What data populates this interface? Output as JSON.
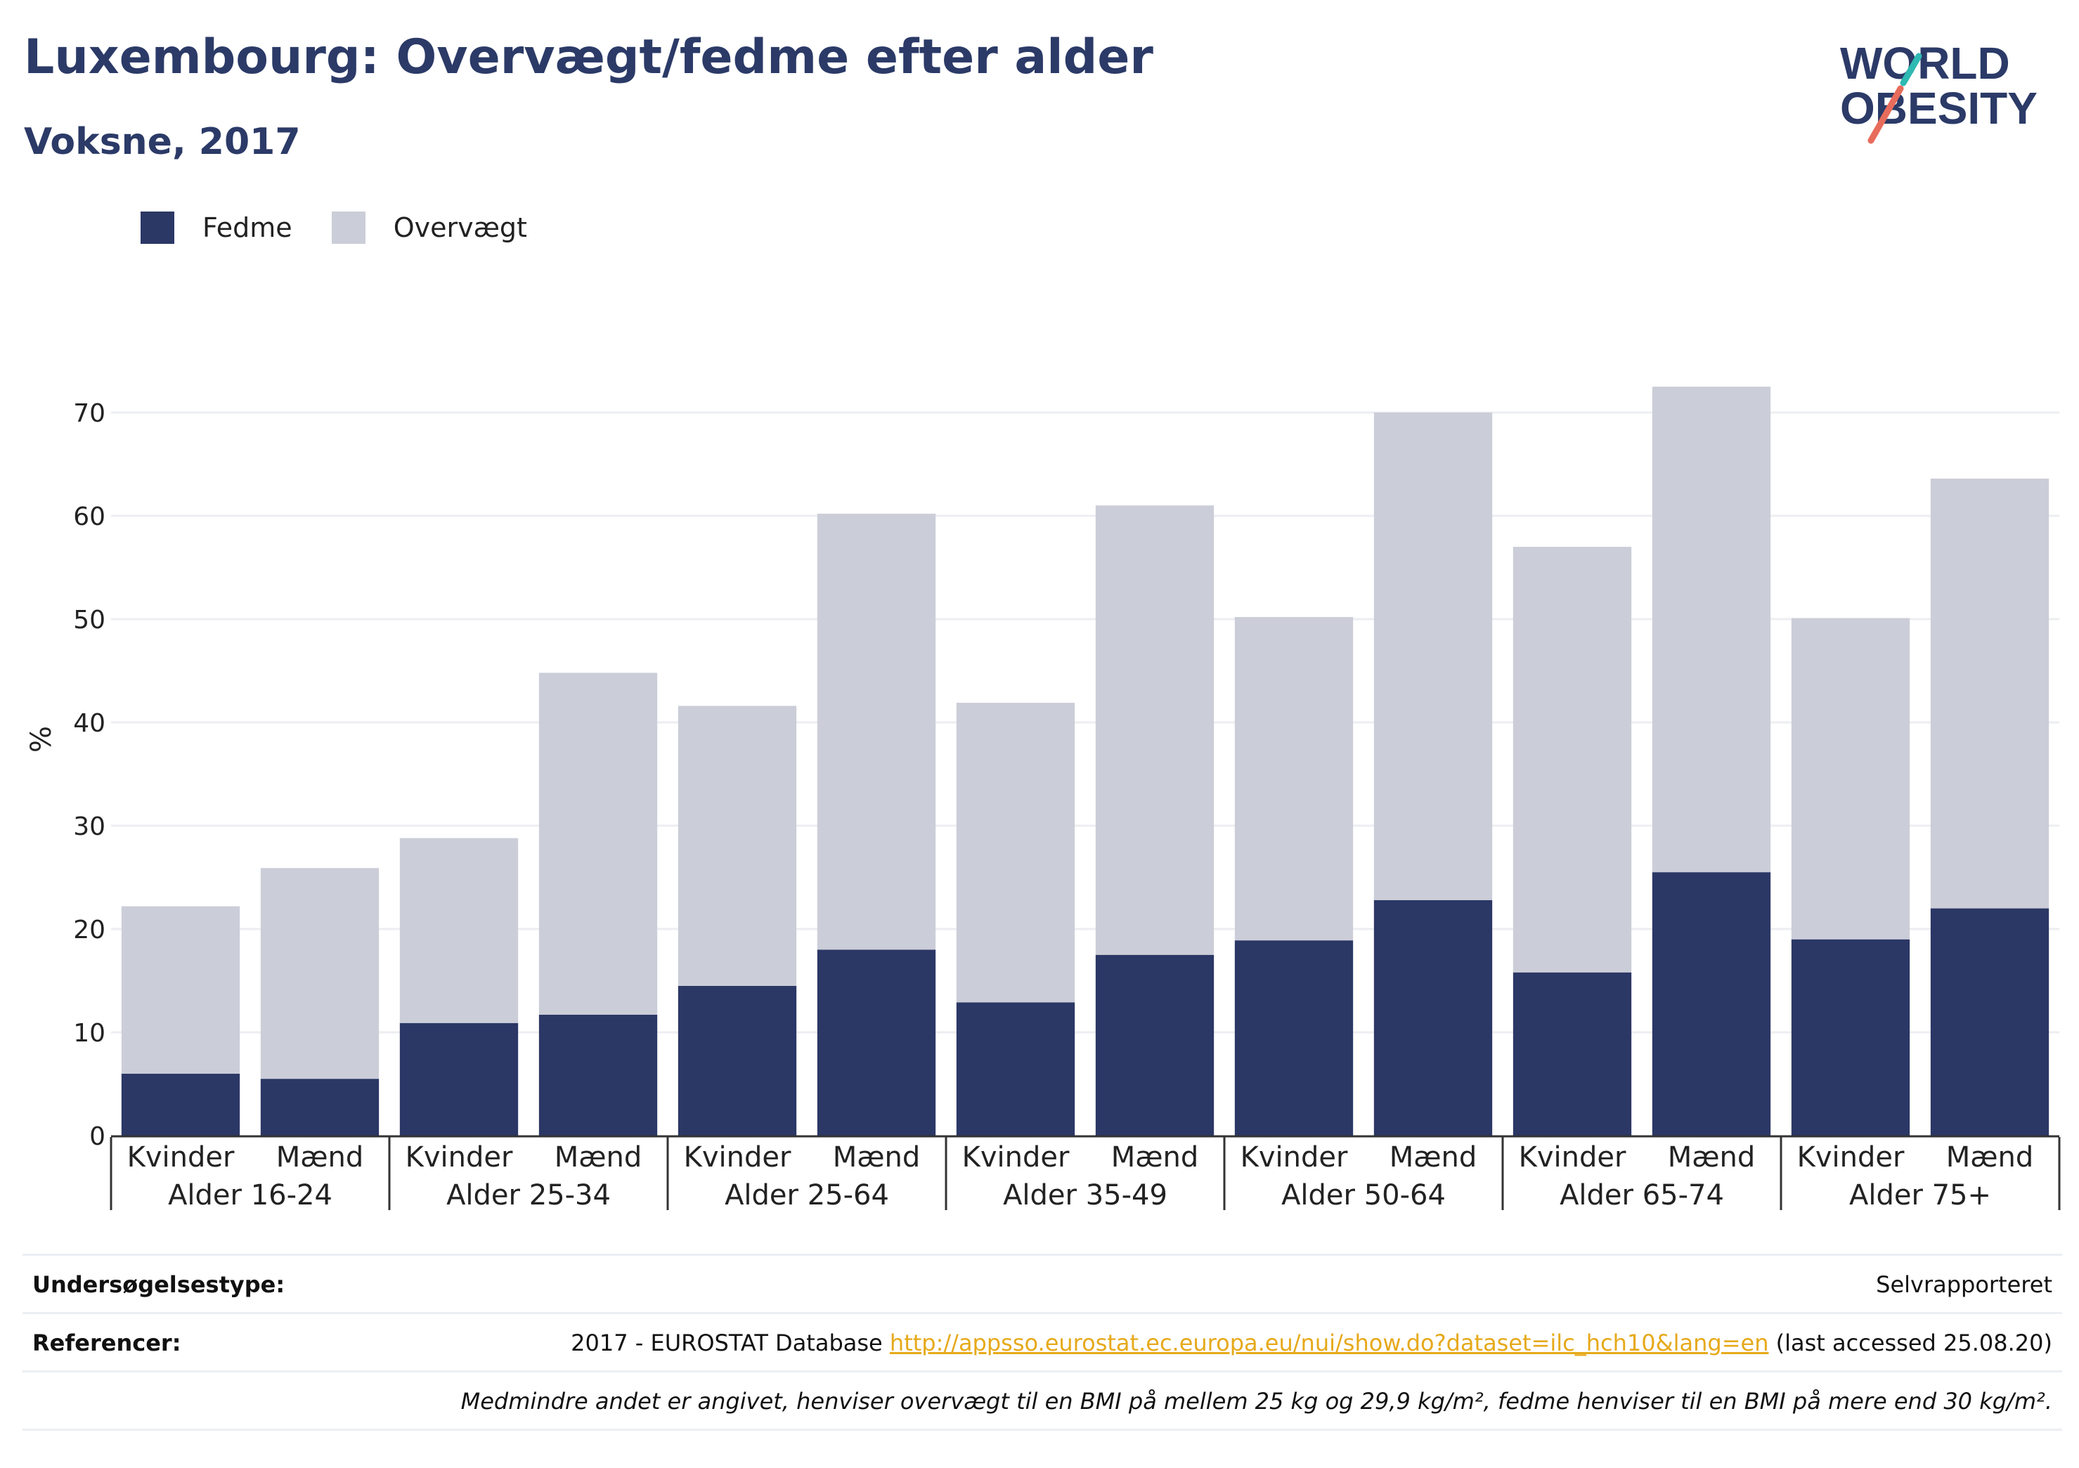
{
  "header": {
    "title": "Luxembourg: Overvægt/fedme efter alder",
    "subtitle": "Voksne, 2017",
    "logo_line1": "WORLD",
    "logo_line2": "OBESITY"
  },
  "legend": {
    "items": [
      {
        "label": "Fedme",
        "color": "#2b3765"
      },
      {
        "label": "Overvægt",
        "color": "#cbcdd8"
      }
    ]
  },
  "chart_data": {
    "type": "bar",
    "stacked": true,
    "ylabel": "%",
    "ylim": [
      0,
      75
    ],
    "yticks": [
      0,
      10,
      20,
      30,
      40,
      50,
      60,
      70
    ],
    "grid": true,
    "legend_position": "top-left",
    "groups": [
      "Alder 16-24",
      "Alder 25-34",
      "Alder 25-64",
      "Alder 35-49",
      "Alder 50-64",
      "Alder 65-74",
      "Alder 75+"
    ],
    "subcategories": [
      "Kvinder",
      "Mænd"
    ],
    "categories": [
      "Kvinder",
      "Mænd",
      "Kvinder",
      "Mænd",
      "Kvinder",
      "Mænd",
      "Kvinder",
      "Mænd",
      "Kvinder",
      "Mænd",
      "Kvinder",
      "Mænd",
      "Kvinder",
      "Mænd"
    ],
    "series": [
      {
        "name": "Fedme",
        "color": "#2b3765",
        "values": [
          6.0,
          5.5,
          10.9,
          11.7,
          14.5,
          18.0,
          12.9,
          17.5,
          18.9,
          22.8,
          15.8,
          25.5,
          19.0,
          22.0
        ]
      },
      {
        "name": "Overvægt",
        "color": "#cbcdd8",
        "values": [
          16.2,
          20.4,
          17.9,
          33.1,
          27.1,
          42.2,
          29.0,
          43.5,
          31.3,
          47.2,
          41.2,
          47.0,
          31.1,
          41.6
        ]
      }
    ],
    "totals": [
      22.2,
      25.9,
      28.8,
      44.8,
      41.6,
      60.2,
      41.9,
      61.0,
      50.2,
      70.0,
      57.0,
      72.5,
      50.1,
      63.6
    ]
  },
  "footer": {
    "survey_label": "Undersøgelsestype:",
    "survey_value": "Selvrapporteret",
    "refs_label": "Referencer:",
    "refs_prefix": "2017 - EUROSTAT Database ",
    "refs_link": "http://appsso.eurostat.ec.europa.eu/nui/show.do?dataset=ilc_hch10&lang=en",
    "refs_suffix": " (last accessed 25.08.20)",
    "note": "Medmindre andet er angivet, henviser overvægt til en BMI på mellem 25 kg og 29,9 kg/m², fedme henviser til en BMI på mere end 30 kg/m²."
  }
}
